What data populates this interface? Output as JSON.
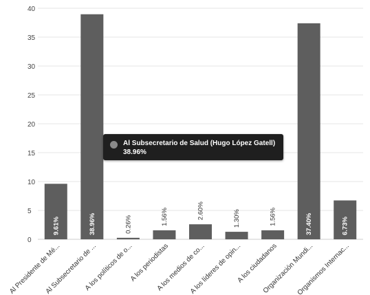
{
  "chart_data": {
    "type": "bar",
    "title": "",
    "xlabel": "",
    "ylabel": "",
    "ylim": [
      0,
      40
    ],
    "yticks": [
      0,
      5,
      10,
      15,
      20,
      25,
      30,
      35,
      40
    ],
    "grid": true,
    "bar_color": "#5e5e5e",
    "categories": [
      "Al Presidente de Mé...",
      "Al Subsecretario de ...",
      "A los políticos de o...",
      "A los periodistas",
      "A los medios de co...",
      "A los líderes de opin...",
      "A los ciudadanos",
      "Organización Mundi...",
      "Organismos Internac..."
    ],
    "values": [
      9.61,
      38.96,
      0.26,
      1.56,
      2.6,
      1.3,
      1.56,
      37.4,
      6.73
    ],
    "data_labels": [
      "9.61%",
      "38.96%",
      "0.26%",
      "1.56%",
      "2.60%",
      "1.30%",
      "1.56%",
      "37.40%",
      "6.73%"
    ]
  },
  "tooltip": {
    "title": "Al Subsecretario de Salud (Hugo López  Gatell)",
    "value": "38.96%",
    "swatch_color": "#8a8a8a"
  }
}
